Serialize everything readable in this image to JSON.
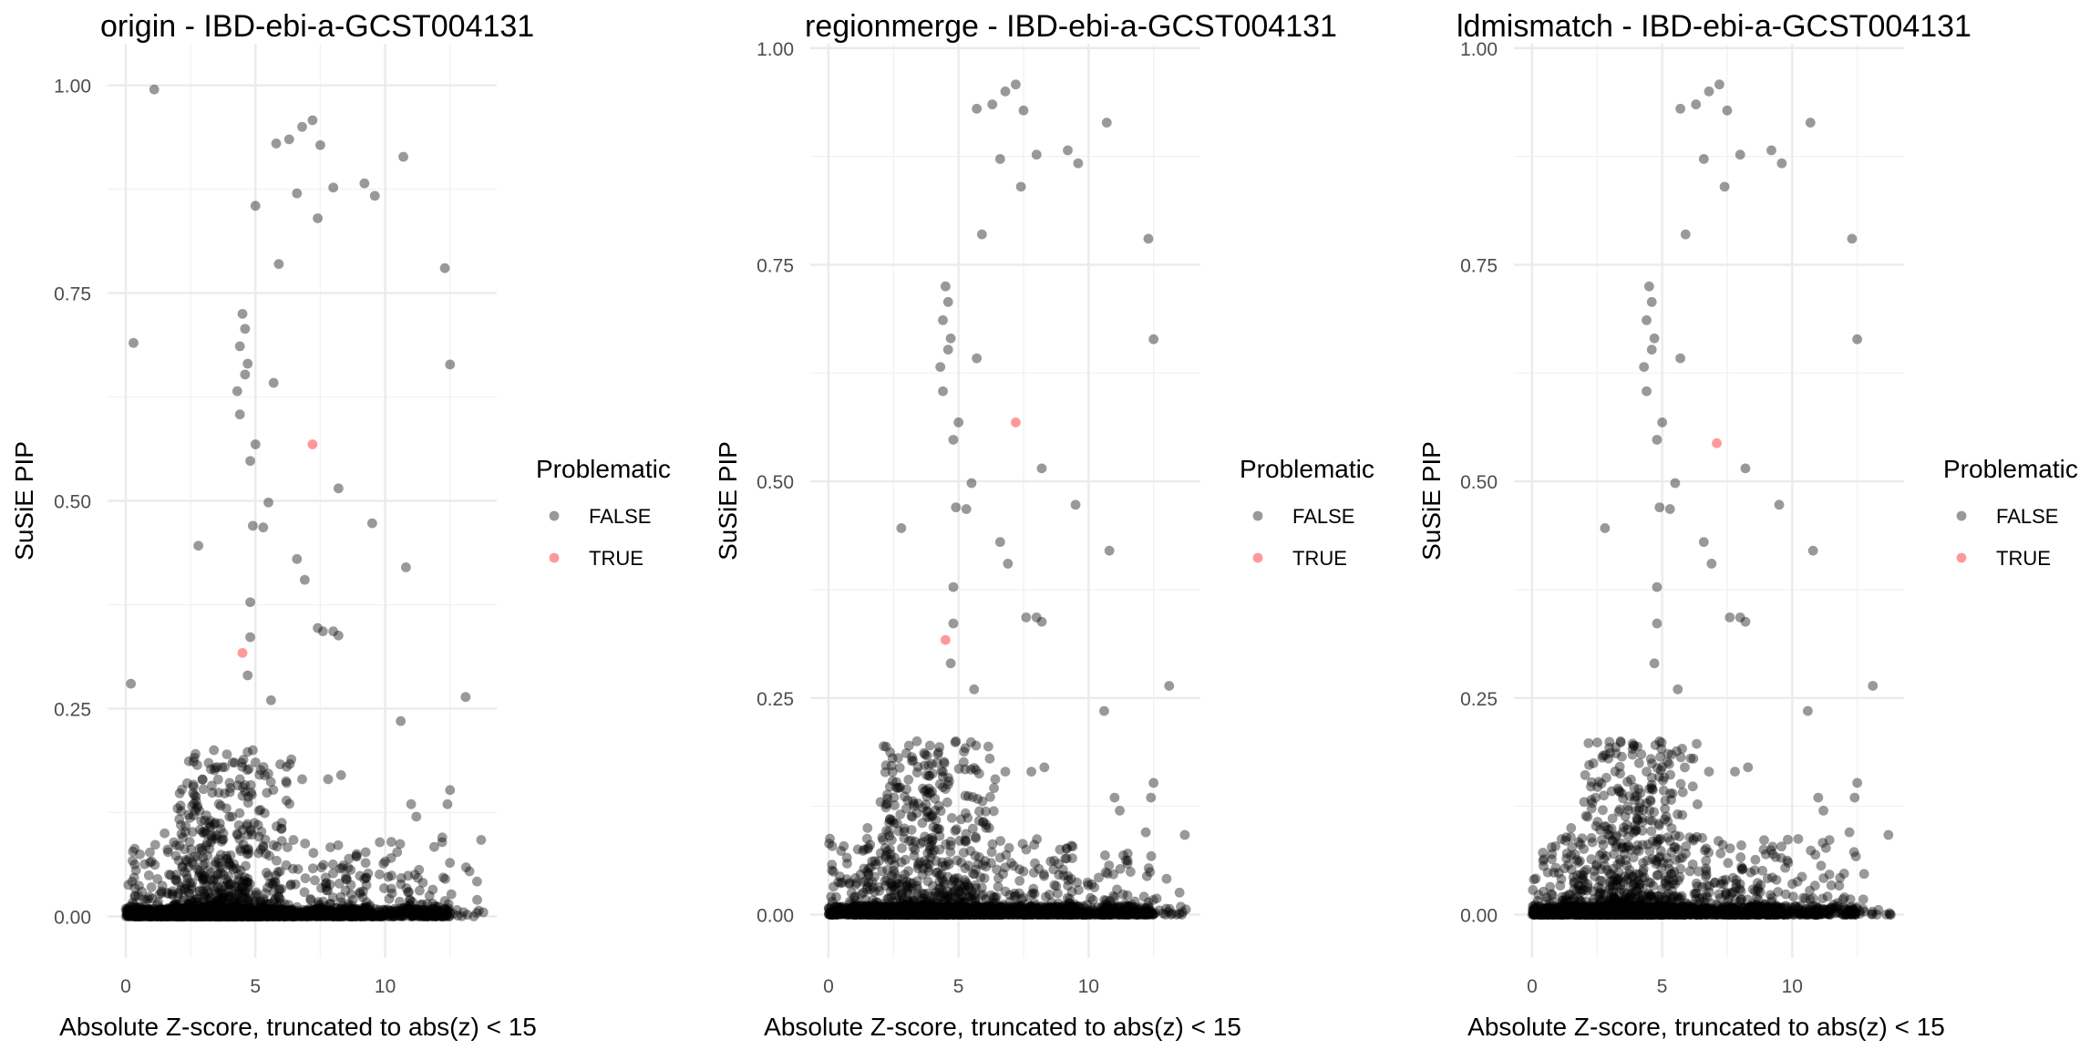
{
  "chart_data": [
    {
      "type": "scatter",
      "title": "origin - IBD-ebi-a-GCST004131",
      "xlabel": "Absolute Z-score, truncated to abs(z) < 15",
      "ylabel": "SuSiE PIP",
      "xlim": [
        -0.7,
        14.3
      ],
      "ylim": [
        -0.05,
        1.05
      ],
      "x_ticks": [
        0,
        5,
        10
      ],
      "y_ticks": [
        0.0,
        0.25,
        0.5,
        0.75,
        1.0
      ],
      "y_tick_labels": [
        "0.00",
        "0.25",
        "0.50",
        "0.75",
        "1.00"
      ],
      "grid": true,
      "legend": {
        "title": "Problematic",
        "position": "right",
        "entries": [
          "FALSE",
          "TRUE"
        ]
      },
      "colors": {
        "FALSE": "#000000",
        "TRUE": "#FF0000"
      },
      "point_alpha": 0.4,
      "series": [
        {
          "name": "FALSE",
          "x": [
            1.1,
            0.3,
            0.2,
            5.8,
            6.3,
            6.8,
            7.2,
            7.5,
            7.4,
            6.6,
            8.0,
            9.2,
            9.6,
            10.7,
            5.0,
            7.4,
            12.3,
            12.5,
            5.9,
            4.5,
            4.6,
            4.4,
            4.7,
            4.6,
            4.3,
            5.7,
            4.4,
            5.0,
            6.6,
            4.8,
            5.5,
            8.2,
            9.5,
            4.9,
            5.3,
            6.9,
            10.8,
            4.8,
            7.6,
            8.0,
            4.8,
            8.2,
            2.8,
            13.1,
            4.7,
            5.6,
            10.6,
            12.5,
            12.4,
            3.4,
            3.9,
            4.2,
            4.9,
            5.2,
            4.4,
            4.6,
            2.0,
            1.5,
            11.0,
            11.2,
            12.2,
            7.8,
            8.3,
            6.2,
            6.8,
            4.6,
            4.5,
            4.1,
            5.1,
            13.7,
            3.7,
            3.1,
            5.3,
            8.9
          ],
          "y": [
            0.995,
            0.69,
            0.28,
            0.93,
            0.935,
            0.95,
            0.958,
            0.928,
            0.84,
            0.87,
            0.877,
            0.882,
            0.867,
            0.914,
            0.855,
            0.347,
            0.78,
            0.664,
            0.785,
            0.725,
            0.707,
            0.686,
            0.665,
            0.652,
            0.632,
            0.642,
            0.604,
            0.568,
            0.43,
            0.548,
            0.498,
            0.515,
            0.473,
            0.47,
            0.468,
            0.405,
            0.42,
            0.378,
            0.343,
            0.343,
            0.336,
            0.338,
            0.446,
            0.264,
            0.29,
            0.26,
            0.235,
            0.152,
            0.135,
            0.2,
            0.195,
            0.185,
            0.2,
            0.176,
            0.165,
            0.158,
            0.13,
            0.1,
            0.135,
            0.12,
            0.095,
            0.165,
            0.17,
            0.18,
            0.165,
            0.15,
            0.145,
            0.12,
            0.11,
            0.092,
            0.09,
            0.085,
            0.085,
            0.075
          ]
        },
        {
          "name": "TRUE",
          "x": [
            7.2,
            4.5
          ],
          "y": [
            0.568,
            0.317
          ]
        }
      ]
    },
    {
      "type": "scatter",
      "title": "regionmerge - IBD-ebi-a-GCST004131",
      "xlabel": "Absolute Z-score, truncated to abs(z) < 15",
      "ylabel": "SuSiE PIP",
      "xlim": [
        -0.7,
        14.3
      ],
      "ylim": [
        -0.05,
        1.005
      ],
      "x_ticks": [
        0,
        5,
        10
      ],
      "y_ticks": [
        0.0,
        0.25,
        0.5,
        0.75,
        1.0
      ],
      "y_tick_labels": [
        "0.00",
        "0.25",
        "0.50",
        "0.75",
        "1.00"
      ],
      "grid": true,
      "legend": {
        "title": "Problematic",
        "position": "right",
        "entries": [
          "FALSE",
          "TRUE"
        ]
      },
      "colors": {
        "FALSE": "#000000",
        "TRUE": "#FF0000"
      },
      "point_alpha": 0.4,
      "series": [
        {
          "name": "FALSE",
          "x": [
            5.7,
            6.3,
            6.8,
            7.2,
            7.5,
            7.4,
            6.6,
            8.0,
            9.2,
            9.6,
            10.7,
            12.3,
            12.5,
            5.9,
            4.5,
            4.6,
            4.4,
            4.7,
            4.6,
            4.3,
            5.7,
            4.4,
            5.0,
            6.6,
            4.8,
            5.5,
            8.2,
            9.5,
            4.9,
            5.3,
            6.9,
            10.8,
            4.8,
            7.6,
            8.0,
            4.8,
            8.2,
            2.8,
            13.1,
            4.7,
            5.6,
            10.6,
            12.5,
            12.4,
            3.4,
            3.9,
            4.2,
            4.9,
            5.2,
            4.4,
            4.6,
            2.0,
            1.5,
            11.0,
            11.2,
            12.2,
            7.8,
            8.3,
            6.2,
            6.8,
            4.6,
            4.5,
            4.1,
            5.1,
            13.7,
            3.7,
            3.1,
            5.3,
            8.9
          ],
          "y": [
            0.93,
            0.935,
            0.95,
            0.958,
            0.928,
            0.84,
            0.872,
            0.877,
            0.882,
            0.867,
            0.914,
            0.78,
            0.664,
            0.785,
            0.725,
            0.707,
            0.686,
            0.665,
            0.652,
            0.632,
            0.642,
            0.604,
            0.568,
            0.43,
            0.548,
            0.498,
            0.515,
            0.473,
            0.47,
            0.468,
            0.405,
            0.42,
            0.378,
            0.343,
            0.343,
            0.336,
            0.338,
            0.446,
            0.264,
            0.29,
            0.26,
            0.235,
            0.152,
            0.135,
            0.2,
            0.195,
            0.185,
            0.2,
            0.176,
            0.165,
            0.158,
            0.13,
            0.1,
            0.135,
            0.12,
            0.095,
            0.165,
            0.17,
            0.18,
            0.165,
            0.15,
            0.145,
            0.12,
            0.11,
            0.092,
            0.09,
            0.085,
            0.085,
            0.075
          ]
        },
        {
          "name": "TRUE",
          "x": [
            7.2,
            4.5
          ],
          "y": [
            0.568,
            0.317
          ]
        }
      ]
    },
    {
      "type": "scatter",
      "title": "ldmismatch - IBD-ebi-a-GCST004131",
      "xlabel": "Absolute Z-score, truncated to abs(z) < 15",
      "ylabel": "SuSiE PIP",
      "xlim": [
        -0.7,
        14.3
      ],
      "ylim": [
        -0.05,
        1.005
      ],
      "x_ticks": [
        0,
        5,
        10
      ],
      "y_ticks": [
        0.0,
        0.25,
        0.5,
        0.75,
        1.0
      ],
      "y_tick_labels": [
        "0.00",
        "0.25",
        "0.50",
        "0.75",
        "1.00"
      ],
      "grid": true,
      "legend": {
        "title": "Problematic",
        "position": "right",
        "entries": [
          "FALSE",
          "TRUE"
        ]
      },
      "colors": {
        "FALSE": "#000000",
        "TRUE": "#FF0000"
      },
      "point_alpha": 0.4,
      "series": [
        {
          "name": "FALSE",
          "x": [
            5.7,
            6.3,
            6.8,
            7.2,
            7.5,
            7.4,
            6.6,
            8.0,
            9.2,
            9.6,
            10.7,
            12.3,
            12.5,
            5.9,
            4.5,
            4.6,
            4.4,
            4.7,
            4.6,
            4.3,
            5.7,
            4.4,
            5.0,
            6.6,
            4.8,
            5.5,
            8.2,
            9.5,
            4.9,
            5.3,
            6.9,
            10.8,
            4.8,
            7.6,
            8.0,
            4.8,
            8.2,
            2.8,
            13.1,
            4.7,
            5.6,
            10.6,
            12.5,
            12.4,
            3.4,
            3.9,
            4.2,
            4.9,
            5.2,
            4.4,
            4.6,
            2.0,
            1.5,
            11.0,
            11.2,
            12.2,
            7.8,
            8.3,
            6.2,
            6.8,
            4.6,
            4.5,
            4.1,
            5.1,
            13.7,
            3.7,
            3.1,
            5.3,
            8.9
          ],
          "y": [
            0.93,
            0.935,
            0.95,
            0.958,
            0.928,
            0.84,
            0.872,
            0.877,
            0.882,
            0.867,
            0.914,
            0.78,
            0.664,
            0.785,
            0.725,
            0.707,
            0.686,
            0.665,
            0.652,
            0.632,
            0.642,
            0.604,
            0.568,
            0.43,
            0.548,
            0.498,
            0.515,
            0.473,
            0.47,
            0.468,
            0.405,
            0.42,
            0.378,
            0.343,
            0.343,
            0.336,
            0.338,
            0.446,
            0.264,
            0.29,
            0.26,
            0.235,
            0.152,
            0.135,
            0.2,
            0.195,
            0.185,
            0.2,
            0.176,
            0.165,
            0.158,
            0.13,
            0.1,
            0.135,
            0.12,
            0.095,
            0.165,
            0.17,
            0.18,
            0.165,
            0.15,
            0.145,
            0.12,
            0.11,
            0.092,
            0.09,
            0.085,
            0.085,
            0.075
          ]
        },
        {
          "name": "TRUE",
          "x": [
            7.1
          ],
          "y": [
            0.544
          ]
        }
      ]
    }
  ]
}
